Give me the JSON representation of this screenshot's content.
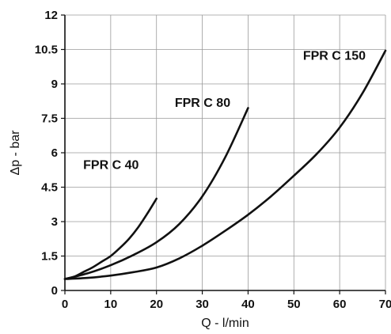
{
  "chart_data": {
    "type": "line",
    "title": "",
    "xlabel": "Q - l/min",
    "ylabel": "Δp - bar",
    "xlim": [
      0,
      70
    ],
    "ylim": [
      0,
      12
    ],
    "xticks": [
      0,
      10,
      20,
      30,
      40,
      50,
      60,
      70
    ],
    "yticks": [
      0,
      1.5,
      3,
      4.5,
      6,
      7.5,
      9,
      10.5,
      12
    ],
    "xtick_labels": [
      "0",
      "10",
      "20",
      "30",
      "40",
      "50",
      "60",
      "70"
    ],
    "ytick_labels": [
      "0",
      "1.5",
      "3",
      "4.5",
      "6",
      "7.5",
      "9",
      "10.5",
      "12"
    ],
    "grid": true,
    "legend": "none",
    "series": [
      {
        "name": "FPR C 40",
        "points": [
          [
            0,
            0.5
          ],
          [
            2,
            0.6
          ],
          [
            4,
            0.8
          ],
          [
            6,
            1.0
          ],
          [
            8,
            1.25
          ],
          [
            10,
            1.5
          ],
          [
            12,
            1.85
          ],
          [
            14,
            2.25
          ],
          [
            16,
            2.75
          ],
          [
            18,
            3.35
          ],
          [
            20,
            4.0
          ]
        ]
      },
      {
        "name": "FPR C 80",
        "points": [
          [
            0,
            0.5
          ],
          [
            5,
            0.75
          ],
          [
            10,
            1.1
          ],
          [
            15,
            1.55
          ],
          [
            20,
            2.1
          ],
          [
            25,
            2.9
          ],
          [
            30,
            4.1
          ],
          [
            35,
            5.8
          ],
          [
            40,
            7.95
          ]
        ]
      },
      {
        "name": "FPR C 150",
        "points": [
          [
            0,
            0.5
          ],
          [
            5,
            0.55
          ],
          [
            10,
            0.65
          ],
          [
            15,
            0.8
          ],
          [
            20,
            1.0
          ],
          [
            25,
            1.4
          ],
          [
            30,
            1.95
          ],
          [
            35,
            2.6
          ],
          [
            40,
            3.3
          ],
          [
            45,
            4.1
          ],
          [
            50,
            5.0
          ],
          [
            55,
            5.95
          ],
          [
            60,
            7.1
          ],
          [
            65,
            8.6
          ],
          [
            70,
            10.45
          ]
        ]
      }
    ],
    "annotations": [
      {
        "text": "FPR C 40",
        "x": 4,
        "y": 5.3
      },
      {
        "text": "FPR C 80",
        "x": 24,
        "y": 8.0
      },
      {
        "text": "FPR C 150",
        "x": 52,
        "y": 10.05
      }
    ]
  }
}
